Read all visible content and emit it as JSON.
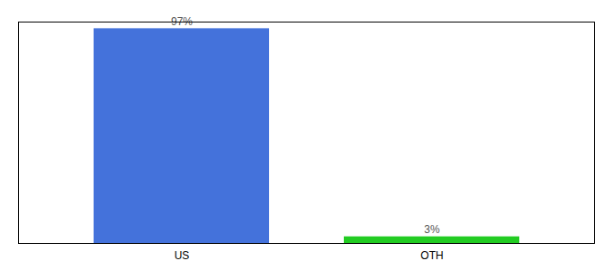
{
  "chart_data": {
    "type": "bar",
    "categories": [
      "US",
      "OTH"
    ],
    "values": [
      97,
      3
    ],
    "value_labels": [
      "97%",
      "3%"
    ],
    "colors": [
      "#4472db",
      "#22cc22"
    ],
    "ylim": [
      0,
      100
    ],
    "data_labels": true,
    "tick_labels": "x",
    "grid": false
  }
}
